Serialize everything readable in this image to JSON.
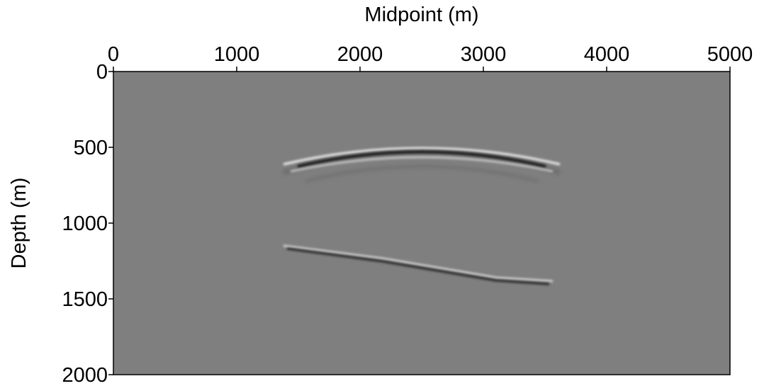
{
  "chart_data": {
    "type": "image",
    "x_label": "Midpoint (m)",
    "y_label": "Depth (m)",
    "xlim": [
      0,
      5000
    ],
    "xticks": [
      0,
      1000,
      2000,
      3000,
      4000,
      5000
    ],
    "ylim": [
      0,
      2000
    ],
    "yticks": [
      0,
      500,
      1000,
      1500,
      2000
    ],
    "y_inverted": true,
    "x_axis_position": "top",
    "background": "#7f7f7f"
  }
}
